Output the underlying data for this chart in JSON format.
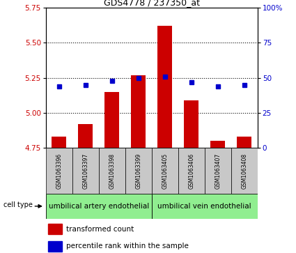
{
  "title": "GDS4778 / 237350_at",
  "samples": [
    "GSM1063396",
    "GSM1063397",
    "GSM1063398",
    "GSM1063399",
    "GSM1063405",
    "GSM1063406",
    "GSM1063407",
    "GSM1063408"
  ],
  "bar_values": [
    4.83,
    4.92,
    5.15,
    5.27,
    5.62,
    5.09,
    4.8,
    4.83
  ],
  "percentile_values": [
    44,
    45,
    48,
    50,
    51,
    47,
    44,
    45
  ],
  "ylim_left": [
    4.75,
    5.75
  ],
  "ylim_right": [
    0,
    100
  ],
  "yticks_left": [
    4.75,
    5.0,
    5.25,
    5.5,
    5.75
  ],
  "yticks_right": [
    0,
    25,
    50,
    75,
    100
  ],
  "bar_color": "#cc0000",
  "dot_color": "#0000cc",
  "cell_type_1": "umbilical artery endothelial",
  "cell_type_2": "umbilical vein endothelial",
  "group1_count": 4,
  "group2_count": 4,
  "cell_type_bg": "#90ee90",
  "sample_bg": "#c8c8c8",
  "legend_bar_label": "transformed count",
  "legend_dot_label": "percentile rank within the sample"
}
